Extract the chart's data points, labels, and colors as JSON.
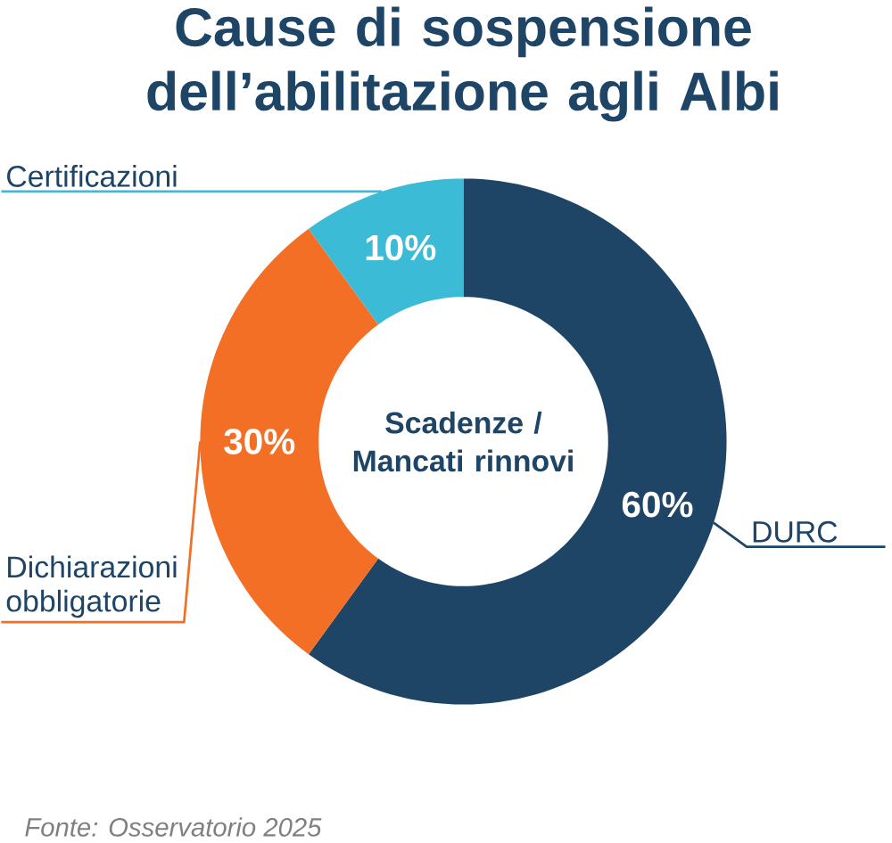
{
  "chart_data": {
    "type": "donut",
    "title": "Cause di sospensione dell’abilitazione agli Albi",
    "categories": [
      "DURC",
      "Dichiarazioni obbligatorie",
      "Certificazioni"
    ],
    "values": [
      60,
      30,
      10
    ],
    "colors": [
      "#1e4466",
      "#f36f25",
      "#3bbbd5"
    ],
    "value_labels": [
      "60%",
      "30%",
      "10%"
    ],
    "annotations": [
      "Scadenze / Mancati rinnovi",
      "Fonte: Osservatorio 2025"
    ]
  }
}
